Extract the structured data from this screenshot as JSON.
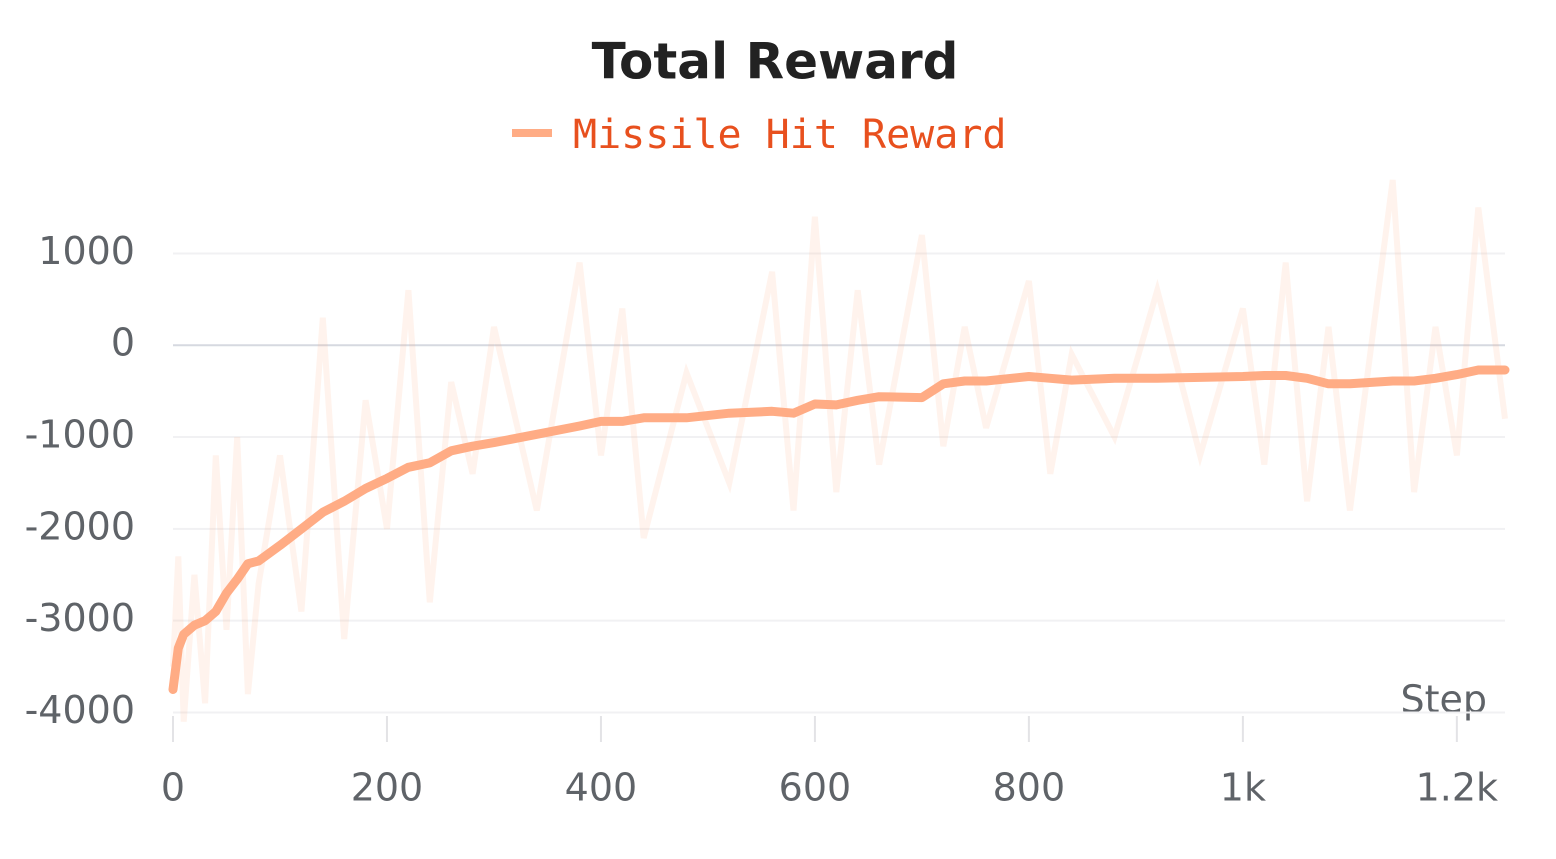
{
  "chart_data": {
    "type": "line",
    "title": "Total Reward",
    "x_label": "Step",
    "x": [
      0,
      5,
      10,
      20,
      30,
      40,
      50,
      60,
      70,
      80,
      100,
      120,
      140,
      160,
      180,
      200,
      220,
      240,
      260,
      280,
      300,
      340,
      380,
      400,
      420,
      440,
      480,
      520,
      560,
      580,
      600,
      620,
      640,
      660,
      700,
      720,
      740,
      760,
      800,
      820,
      840,
      880,
      920,
      960,
      1000,
      1020,
      1040,
      1060,
      1080,
      1100,
      1140,
      1160,
      1180,
      1200,
      1220,
      1245
    ],
    "series": [
      {
        "name": "Missile Hit Reward",
        "color": "#ffac85",
        "text_color": "#e8501e",
        "values": [
          -3750,
          -3300,
          -3150,
          -3050,
          -3000,
          -2900,
          -2700,
          -2550,
          -2380,
          -2350,
          -2180,
          -2000,
          -1820,
          -1700,
          -1560,
          -1450,
          -1330,
          -1280,
          -1150,
          -1100,
          -1060,
          -970,
          -880,
          -830,
          -830,
          -790,
          -790,
          -740,
          -720,
          -740,
          -640,
          -650,
          -600,
          -560,
          -570,
          -420,
          -390,
          -390,
          -340,
          -360,
          -380,
          -360,
          -360,
          -350,
          -340,
          -330,
          -330,
          -360,
          -420,
          -420,
          -390,
          -390,
          -360,
          -320,
          -270,
          -270
        ],
        "raw_values": [
          -3500,
          -2300,
          -4100,
          -2500,
          -3900,
          -1200,
          -3100,
          -1000,
          -3800,
          -2600,
          -1200,
          -2900,
          300,
          -3200,
          -600,
          -2000,
          600,
          -2800,
          -400,
          -1400,
          200,
          -1800,
          900,
          -1200,
          400,
          -2100,
          -300,
          -1500,
          800,
          -1800,
          1400,
          -1600,
          600,
          -1300,
          1200,
          -1100,
          200,
          -900,
          700,
          -1400,
          -100,
          -1000,
          600,
          -1200,
          400,
          -1300,
          900,
          -1700,
          200,
          -1800,
          1800,
          -1600,
          200,
          -1200,
          1500,
          -800
        ]
      }
    ],
    "xlim": [
      0,
      1245
    ],
    "ylim": [
      -4300,
      1800
    ],
    "xticks": [
      0,
      200,
      400,
      600,
      800,
      {
        "value": 1000,
        "label": "1k"
      },
      {
        "value": 1200,
        "label": "1.2k"
      }
    ],
    "yticks": [
      1000,
      0,
      -1000,
      -2000,
      -3000,
      -4000
    ],
    "grid": true
  }
}
